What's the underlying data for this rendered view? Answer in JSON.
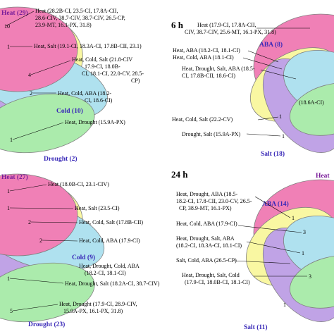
{
  "panels": [
    {
      "time_label": "",
      "sets": {
        "heat": {
          "label": "Heat (29)",
          "color": "#e8348b"
        },
        "cold": {
          "label": "Cold (10)",
          "color": "#7fd0e6"
        },
        "drought": {
          "label": "Drought (2)",
          "color": "#79e07a"
        },
        "salt": {
          "label": "",
          "color": "#9a6bd8"
        },
        "aba": {
          "label": "",
          "color": "#f6f36a"
        }
      },
      "annotations": [
        "Heat (28.2B-CI, 23.5-CI, 17.8A-CII,",
        "28.6-CIV, 38.7-CIV, 38.7-CIV, 26.5-CP,",
        "23.9-MT, 16.1-PX, 31.8)",
        "Heat, Salt (19.1-CI, 18.3A-CI, 17.8B-CII, 23.1)",
        "Heat, Cold, Salt (21.8-CIV",
        "17.9-CI, 18.0B-",
        "CI, 18.1-CI, 22.0-CV, 28.5-",
        "CP)",
        "Heat, Cold, ABA (18.2-",
        "CI, 18.6-CI)",
        "Heat, Drought (15.9A-PX)"
      ],
      "numbers": [
        "10",
        "1",
        "4",
        "2",
        "1"
      ]
    },
    {
      "time_label": "6 h",
      "sets": {
        "aba": {
          "label": "ABA (8)",
          "color": "#f6f36a"
        },
        "salt": {
          "label": "Salt (18)",
          "color": "#9a6bd8"
        }
      },
      "annotations": [
        "Heat (17.9-CI, 17.8A-CII,",
        "CIV, 38.7-CIV, 25.6-MT, 16.1-PX, 31.8)",
        "Heat, ABA (18.2-CI, 18.1-CI)",
        "Heat, Cold, ABA (18.1-CI)",
        "Heat, Drought, Salt, ABA (18.5-",
        "CI, 17.8B-CII, 18.6-CI)",
        "Heat, Cold, Salt (22.2-CV)",
        "Drought, Salt (15.9A-PX)",
        "(18.6A-CI)"
      ],
      "numbers": [
        "1",
        "1"
      ]
    },
    {
      "time_label": "",
      "sets": {
        "heat": {
          "label": "Heat (27)",
          "color": "#e8348b"
        },
        "cold": {
          "label": "Cold (9)",
          "color": "#7fd0e6"
        },
        "drought": {
          "label": "Drought (23)",
          "color": "#79e07a"
        }
      },
      "annotations": [
        "Heat (18.0B-CI, 23.1-CIV)",
        "Heat, Salt (23.5-CI)",
        "Heat, Cold, Salt (17.8B-CII)",
        "Heat, Cold, ABA (17.9-CI)",
        "Heat, Drought, Cold, ABA",
        "(18.2-CI, 18.1-CI)",
        "Heat, Drought, Salt (18.2A-CI, 38.7-CIV)",
        "Heat, Drought (17.9-CI, 28.9-CIV,",
        "15.9A-PX, 16.1-PX, 31.8)"
      ],
      "numbers": [
        "1",
        "1",
        "2",
        "2",
        "1",
        "5"
      ]
    },
    {
      "time_label": "24 h",
      "sets": {
        "aba": {
          "label": "ABA (14)",
          "color": "#f6f36a"
        },
        "heat": {
          "label": "Heat",
          "color": "#e8348b"
        },
        "salt": {
          "label": "Salt (11)",
          "color": "#9a6bd8"
        }
      },
      "annotations": [
        "Heat, Drought, ABA (18.5-",
        "18.2-CI, 17.8-CII, 23.0-CV, 26.5-",
        "CP, 38.9-MT, 16.1-PX)",
        "Heat, Cold, ABA (17.9-CI)",
        "Heat, Drought, Salt, ABA",
        "(18.2-CI, 18.3A-CI, 18.1-CI)",
        "Salt, Cold, ABA (26.5-CP)",
        "Heat, Drought, Salt, Cold",
        "(17.9-CI, 18.0B-CI, 18.1-CI)"
      ],
      "numbers": [
        "1",
        "3",
        "1",
        "3",
        "1"
      ]
    }
  ]
}
